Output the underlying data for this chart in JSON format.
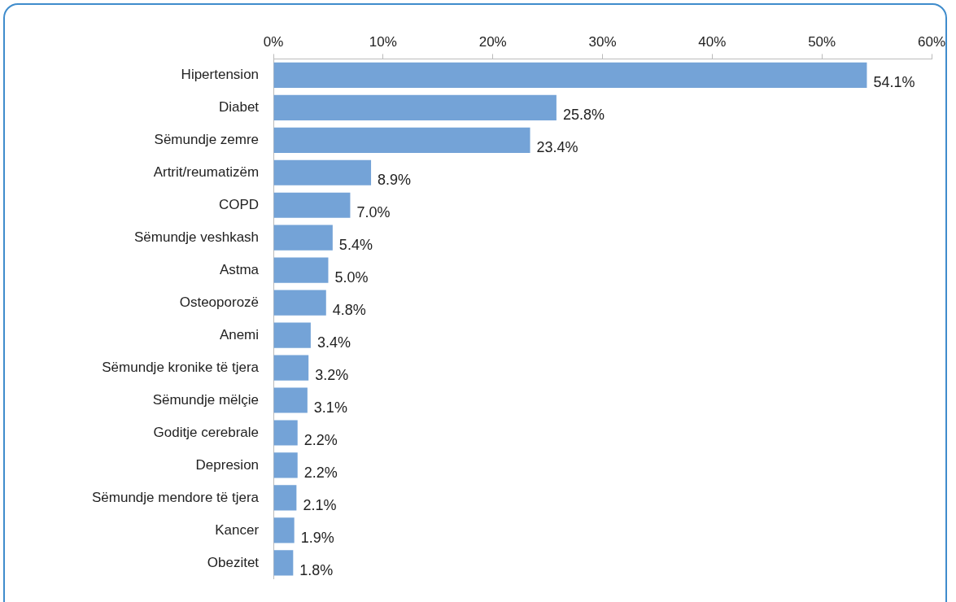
{
  "chart_data": {
    "type": "bar",
    "orientation": "horizontal",
    "categories": [
      "Hipertension",
      "Diabet",
      "Sëmundje zemre",
      "Artrit/reumatizëm",
      "COPD",
      "Sëmundje veshkash",
      "Astma",
      "Osteoporozë",
      "Anemi",
      "Sëmundje kronike të tjera",
      "Sëmundje mëlçie",
      "Goditje cerebrale",
      "Depresion",
      "Sëmundje mendore të tjera",
      "Kancer",
      "Obezitet"
    ],
    "values": [
      54.1,
      25.8,
      23.4,
      8.9,
      7.0,
      5.4,
      5.0,
      4.8,
      3.4,
      3.2,
      3.1,
      2.2,
      2.2,
      2.1,
      1.9,
      1.8
    ],
    "value_labels": [
      "54.1%",
      "25.8%",
      "23.4%",
      "8.9%",
      "7.0%",
      "5.4%",
      "5.0%",
      "4.8%",
      "3.4%",
      "3.2%",
      "3.1%",
      "2.2%",
      "2.2%",
      "2.1%",
      "1.9%",
      "1.8%"
    ],
    "color": "#74a3d7",
    "xlim": [
      0,
      60
    ],
    "xticks": [
      {
        "value": 0,
        "label": "0%"
      },
      {
        "value": 10,
        "label": "10%"
      },
      {
        "value": 20,
        "label": "20%"
      },
      {
        "value": 30,
        "label": "30%"
      },
      {
        "value": 40,
        "label": "40%"
      },
      {
        "value": 50,
        "label": "50%"
      },
      {
        "value": 60,
        "label": "60%"
      }
    ],
    "grid": false,
    "legend": false
  }
}
